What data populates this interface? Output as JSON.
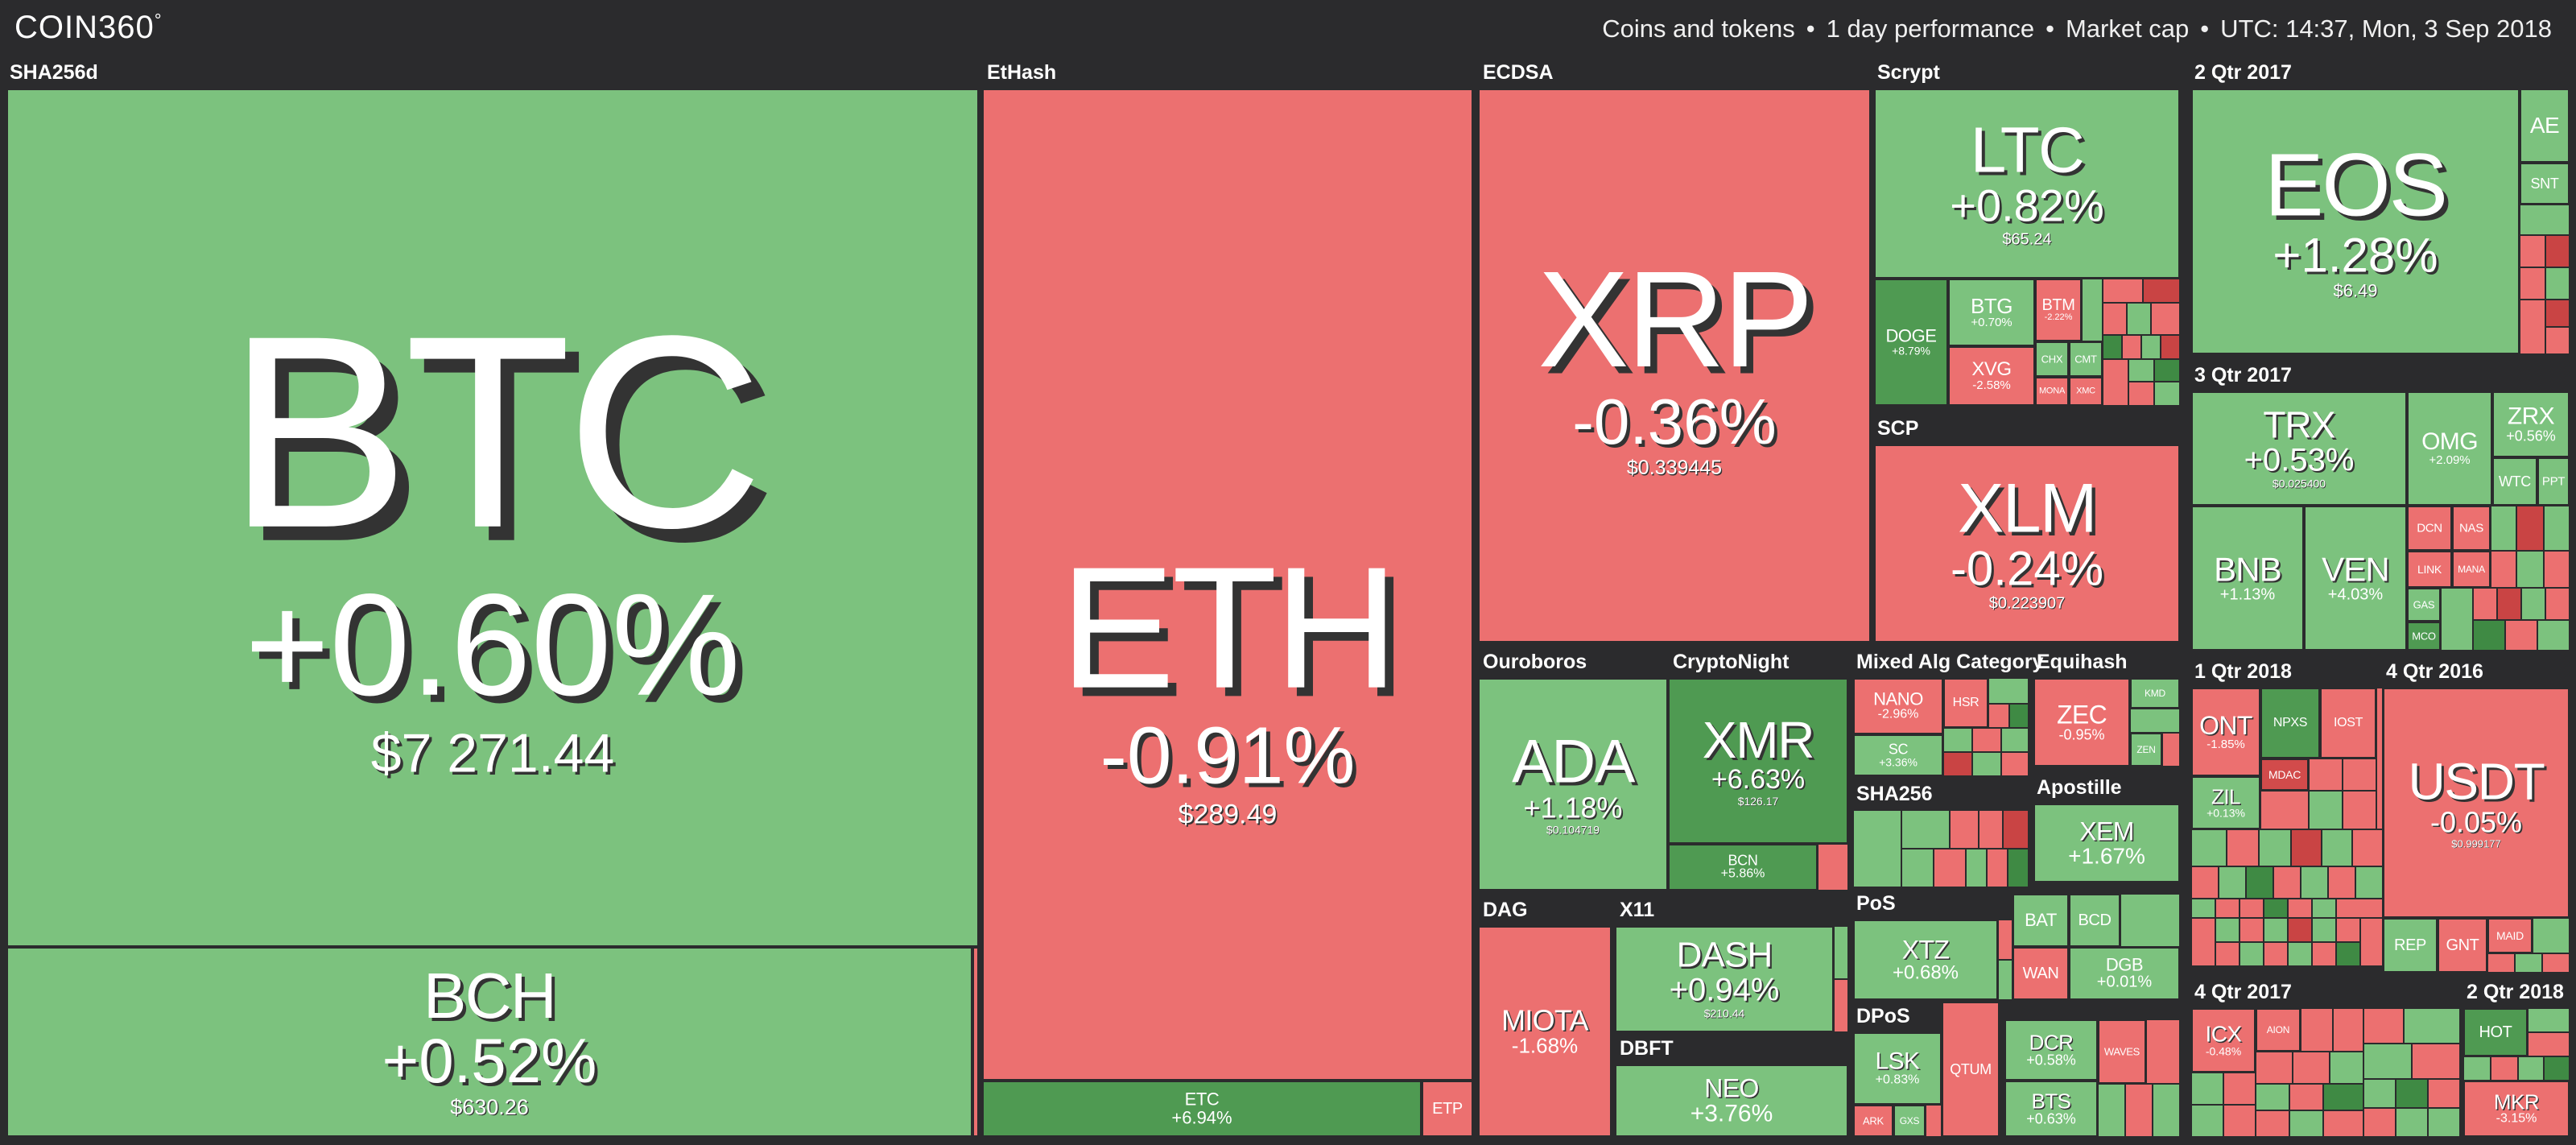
{
  "app": {
    "logo": "COIN360",
    "logo_mark": "°"
  },
  "header": {
    "filter": "Coins and tokens",
    "period": "1 day performance",
    "metric": "Market cap",
    "time": "UTC: 14:37, Mon, 3 Sep 2018",
    "sep": "•"
  },
  "colors": {
    "up": "#7cc27e",
    "down": "#ec7070",
    "strong_up": "#4f9a52",
    "strong_down": "#d24b4b",
    "bg": "#2b2b2d"
  },
  "categories": {
    "sha256d": "SHA256d",
    "ethash": "EtHash",
    "ecdsa": "ECDSA",
    "scrypt": "Scrypt",
    "q2_2017": "2 Qtr 2017",
    "scp": "SCP",
    "q3_2017": "3 Qtr 2017",
    "ouroboros": "Ouroboros",
    "cryptonight": "CryptoNight",
    "mixed": "Mixed Alg Category",
    "equihash": "Equihash",
    "q1_2018": "1 Qtr 2018",
    "q4_2016": "4 Qtr 2016",
    "sha256": "SHA256",
    "apostille": "Apostille",
    "dag": "DAG",
    "x11": "X11",
    "pos": "PoS",
    "dbft": "DBFT",
    "dpos": "DPoS",
    "q4_2017": "4 Qtr 2017",
    "q2_2018": "2 Qtr 2018"
  },
  "coins": {
    "btc": {
      "sym": "BTC",
      "chg": "+0.60%",
      "price": "$7 271.44"
    },
    "bch": {
      "sym": "BCH",
      "chg": "+0.52%",
      "price": "$630.26"
    },
    "eth": {
      "sym": "ETH",
      "chg": "-0.91%",
      "price": "$289.49"
    },
    "etc": {
      "sym": "ETC",
      "chg": "+6.94%",
      "price": ""
    },
    "etp": {
      "sym": "ETP",
      "chg": ""
    },
    "xrp": {
      "sym": "XRP",
      "chg": "-0.36%",
      "price": "$0.339445"
    },
    "ltc": {
      "sym": "LTC",
      "chg": "+0.82%",
      "price": "$65.24"
    },
    "doge": {
      "sym": "DOGE",
      "chg": "+8.79%"
    },
    "btg": {
      "sym": "BTG",
      "chg": "+0.70%"
    },
    "btm": {
      "sym": "BTM",
      "chg": "-2.22%"
    },
    "xvg": {
      "sym": "XVG",
      "chg": "-2.58%"
    },
    "chx": {
      "sym": "CHX"
    },
    "cmt": {
      "sym": "CMT"
    },
    "mona": {
      "sym": "MONA"
    },
    "xmc": {
      "sym": "XMC"
    },
    "eos": {
      "sym": "EOS",
      "chg": "+1.28%",
      "price": "$6.49"
    },
    "ae": {
      "sym": "AE"
    },
    "snt": {
      "sym": "SNT"
    },
    "xlm": {
      "sym": "XLM",
      "chg": "-0.24%",
      "price": "$0.223907"
    },
    "trx": {
      "sym": "TRX",
      "chg": "+0.53%",
      "price": "$0.025400"
    },
    "omg": {
      "sym": "OMG",
      "chg": "+2.09%"
    },
    "zrx": {
      "sym": "ZRX",
      "chg": "+0.56%"
    },
    "wtc": {
      "sym": "WTC"
    },
    "ppt": {
      "sym": "PPT"
    },
    "bnb": {
      "sym": "BNB",
      "chg": "+1.13%"
    },
    "ven": {
      "sym": "VEN",
      "chg": "+4.03%"
    },
    "dcn": {
      "sym": "DCN"
    },
    "nas": {
      "sym": "NAS"
    },
    "link": {
      "sym": "LINK"
    },
    "mana": {
      "sym": "MANA"
    },
    "mco": {
      "sym": "MCO"
    },
    "gas": {
      "sym": "GAS"
    },
    "ada": {
      "sym": "ADA",
      "chg": "+1.18%",
      "price": "$0.104719"
    },
    "xmr": {
      "sym": "XMR",
      "chg": "+6.63%",
      "price": "$126.17"
    },
    "bcn": {
      "sym": "BCN",
      "chg": "+5.86%"
    },
    "nano": {
      "sym": "NANO",
      "chg": "-2.96%"
    },
    "hsr": {
      "sym": "HSR"
    },
    "sc": {
      "sym": "SC",
      "chg": "+3.36%"
    },
    "zec": {
      "sym": "ZEC",
      "chg": "-0.95%"
    },
    "kmd": {
      "sym": "KMD"
    },
    "zen": {
      "sym": "ZEN"
    },
    "ont": {
      "sym": "ONT",
      "chg": "-1.85%"
    },
    "npxs": {
      "sym": "NPXS"
    },
    "iost": {
      "sym": "IOST"
    },
    "mdac": {
      "sym": "MDAC"
    },
    "zil": {
      "sym": "ZIL",
      "chg": "+0.13%"
    },
    "usdt": {
      "sym": "USDT",
      "chg": "-0.05%",
      "price": "$0.999177"
    },
    "rep": {
      "sym": "REP"
    },
    "gnt": {
      "sym": "GNT"
    },
    "maid": {
      "sym": "MAID"
    },
    "xem": {
      "sym": "XEM",
      "chg": "+1.67%"
    },
    "miota": {
      "sym": "MIOTA",
      "chg": "-1.68%"
    },
    "dash": {
      "sym": "DASH",
      "chg": "+0.94%",
      "price": "$210.44"
    },
    "xtz": {
      "sym": "XTZ",
      "chg": "+0.68%"
    },
    "bat": {
      "sym": "BAT"
    },
    "bcd": {
      "sym": "BCD"
    },
    "wan": {
      "sym": "WAN"
    },
    "dgb": {
      "sym": "DGB",
      "chg": "+0.01%"
    },
    "neo": {
      "sym": "NEO",
      "chg": "+3.76%"
    },
    "lsk": {
      "sym": "LSK",
      "chg": "+0.83%"
    },
    "qtum": {
      "sym": "QTUM"
    },
    "ark": {
      "sym": "ARK"
    },
    "gxs": {
      "sym": "GXS"
    },
    "dcr": {
      "sym": "DCR",
      "chg": "+0.58%"
    },
    "bts": {
      "sym": "BTS",
      "chg": "+0.63%"
    },
    "waves": {
      "sym": "WAVES"
    },
    "icx": {
      "sym": "ICX",
      "chg": "-0.48%"
    },
    "aion": {
      "sym": "AION"
    },
    "hot": {
      "sym": "HOT"
    },
    "mkr": {
      "sym": "MKR",
      "chg": "-3.15%"
    }
  }
}
